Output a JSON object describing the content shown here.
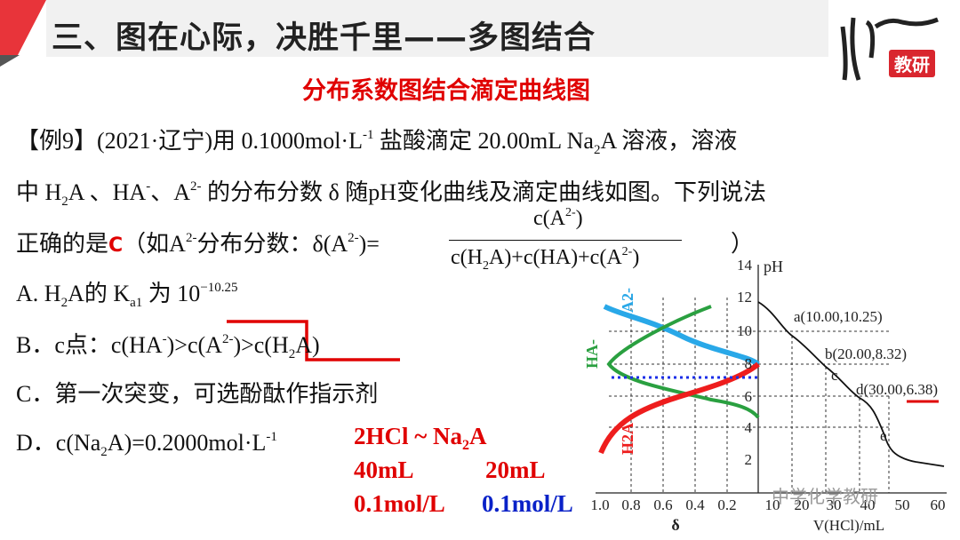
{
  "header": {
    "title": "三、图在心际，决胜千里——多图结合",
    "subtitle": "分布系数图结合滴定曲线图",
    "logo": "教研"
  },
  "question": {
    "lines": [
      [
        {
          "text": "【例9】(2021·辽宁)用 0.1000mol·L"
        },
        {
          "sup": "-1"
        },
        {
          "text": " 盐酸滴定 20.00mL Na"
        },
        {
          "sub": "2"
        },
        {
          "text": "A 溶液，溶液"
        }
      ],
      [
        {
          "text": "中 H"
        },
        {
          "sub": "2"
        },
        {
          "text": "A 、HA"
        },
        {
          "sup": "-"
        },
        {
          "text": "、A"
        },
        {
          "sup": "2-"
        },
        {
          "text": " 的分布分数 δ 随pH变化曲线及滴定曲线如图。下列说法"
        }
      ],
      [
        {
          "text": "正确的是"
        },
        {
          "red": "C"
        },
        {
          "text": "（如A"
        },
        {
          "sup": "2-"
        },
        {
          "text": "分布分数：δ(A"
        },
        {
          "sup": "2-"
        },
        {
          "text": ")="
        }
      ]
    ],
    "fraction": {
      "numerator": [
        {
          "text": "c(A"
        },
        {
          "sup": "2-"
        },
        {
          "text": ")"
        }
      ],
      "denominator": [
        {
          "text": "c(H"
        },
        {
          "sub": "2"
        },
        {
          "text": "A)+c(HA)+c(A"
        },
        {
          "sup": "2-"
        },
        {
          "text": ")"
        }
      ]
    },
    "closing": "）"
  },
  "options": [
    [
      {
        "text": "A. H"
      },
      {
        "sub": "2"
      },
      {
        "text": "A的 K"
      },
      {
        "sub": "a1"
      },
      {
        "text": " 为 10"
      },
      {
        "sup": "−10.25"
      }
    ],
    [
      {
        "text": "B．c点：c(HA"
      },
      {
        "sup": "-"
      },
      {
        "text": ")>c(A"
      },
      {
        "sup": "2-"
      },
      {
        "text": ")>c(H"
      },
      {
        "sub": "2"
      },
      {
        "text": "A)"
      }
    ],
    [
      {
        "text": "C．第一次突变，可选酚酞作指示剂"
      }
    ],
    [
      {
        "text": "D．c(Na"
      },
      {
        "sub": "2"
      },
      {
        "text": "A)=0.2000mol·L"
      },
      {
        "sup": "-1"
      }
    ]
  ],
  "notes": {
    "equation": [
      {
        "text": "2HCl  ~  Na"
      },
      {
        "sub": "2"
      },
      {
        "text": "A"
      }
    ],
    "volumes": [
      "40mL",
      "20mL"
    ],
    "concentrations": [
      "0.1mol/L",
      "0.1mol/L"
    ]
  },
  "figure": {
    "delta_ticks": [
      "1.0",
      "0.8",
      "0.6",
      "0.4",
      "0.2"
    ],
    "delta_label": "δ",
    "ph_ticks": [
      "14",
      "12",
      "10",
      "8",
      "6",
      "4",
      "2"
    ],
    "ph_label": "pH",
    "volume_ticks": [
      "10",
      "20",
      "30",
      "40",
      "50",
      "60"
    ],
    "volume_label": "V(HCl)/mL",
    "points": [
      "a(10.00,10.25)",
      "b(20.00,8.32)",
      "c",
      "d(30.00,6.38)",
      "e"
    ],
    "curves": [
      "A2-",
      "HA-",
      "H2A"
    ],
    "watermark": "中学化学教研"
  }
}
